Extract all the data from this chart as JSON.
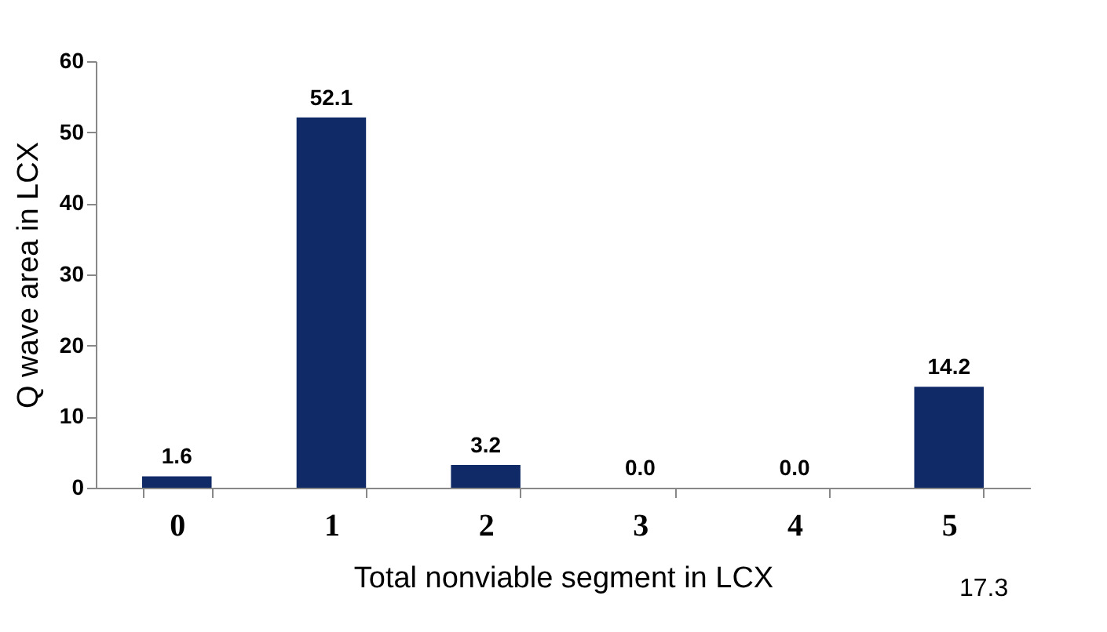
{
  "chart_data": {
    "type": "bar",
    "xlabel": "Total nonviable segment in LCX",
    "ylabel": "Q wave area in LCX",
    "categories": [
      "0",
      "1",
      "2",
      "3",
      "4",
      "5"
    ],
    "values": [
      1.6,
      52.1,
      3.2,
      0.0,
      0.0,
      14.2
    ],
    "color": "#0f2a66",
    "ylim": [
      0,
      60
    ],
    "yticks": [
      0,
      10,
      20,
      30,
      40,
      50,
      60
    ],
    "value_labels": [
      "1.6",
      "52.1",
      "3.2",
      "0.0",
      "0.0",
      "14.2"
    ],
    "annotations": [
      "17.3"
    ]
  }
}
